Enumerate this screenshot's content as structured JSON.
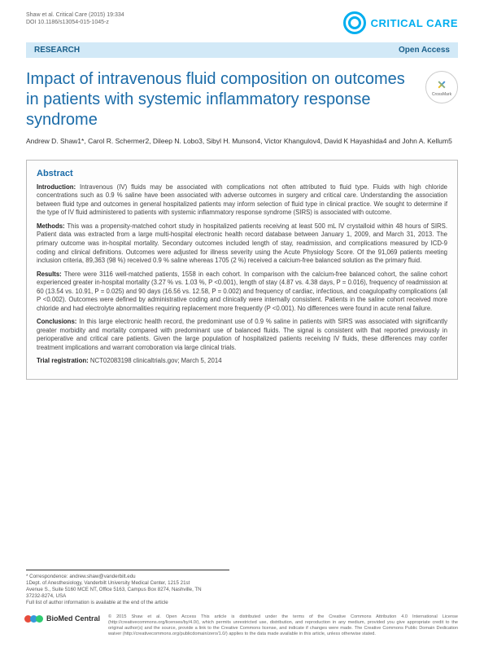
{
  "header": {
    "citation_line1": "Shaw et al. Critical Care (2015) 19:334",
    "citation_line2": "DOI 10.1186/s13054-015-1045-z",
    "journal_name": "CRITICAL CARE"
  },
  "band": {
    "left": "RESEARCH",
    "right": "Open Access"
  },
  "title": "Impact of intravenous fluid composition on outcomes in patients with systemic inflammatory response syndrome",
  "crossmark_label": "CrossMark",
  "authors": "Andrew D. Shaw1*, Carol R. Schermer2, Dileep N. Lobo3, Sibyl H. Munson4, Victor Khangulov4, David K Hayashida4 and John A. Kellum5",
  "abstract": {
    "heading": "Abstract",
    "intro_label": "Introduction:",
    "intro": "Intravenous (IV) fluids may be associated with complications not often attributed to fluid type. Fluids with high chloride concentrations such as 0.9 % saline have been associated with adverse outcomes in surgery and critical care. Understanding the association between fluid type and outcomes in general hospitalized patients may inform selection of fluid type in clinical practice. We sought to determine if the type of IV fluid administered to patients with systemic inflammatory response syndrome (SIRS) is associated with outcome.",
    "methods_label": "Methods:",
    "methods": "This was a propensity-matched cohort study in hospitalized patients receiving at least 500 mL IV crystalloid within 48 hours of SIRS. Patient data was extracted from a large multi-hospital electronic health record database between January 1, 2009, and March 31, 2013. The primary outcome was in-hospital mortality. Secondary outcomes included length of stay, readmission, and complications measured by ICD-9 coding and clinical definitions. Outcomes were adjusted for illness severity using the Acute Physiology Score. Of the 91,069 patients meeting inclusion criteria, 89,363 (98 %) received 0.9 % saline whereas 1705 (2 %) received a calcium-free balanced solution as the primary fluid.",
    "results_label": "Results:",
    "results": "There were 3116 well-matched patients, 1558 in each cohort. In comparison with the calcium-free balanced cohort, the saline cohort experienced greater in-hospital mortality (3.27 % vs. 1.03 %, P <0.001), length of stay (4.87 vs. 4.38 days, P = 0.016), frequency of readmission at 60 (13.54 vs. 10.91, P = 0.025) and 90 days (16.56 vs. 12.58, P = 0.002) and frequency of cardiac, infectious, and coagulopathy complications (all P <0.002). Outcomes were defined by administrative coding and clinically were internally consistent. Patients in the saline cohort received more chloride and had electrolyte abnormalities requiring replacement more frequently (P <0.001). No differences were found in acute renal failure.",
    "conclusions_label": "Conclusions:",
    "conclusions": "In this large electronic health record, the predominant use of 0.9 % saline in patients with SIRS was associated with significantly greater morbidity and mortality compared with predominant use of balanced fluids. The signal is consistent with that reported previously in perioperative and critical care patients. Given the large population of hospitalized patients receiving IV fluids, these differences may confer treatment implications and warrant corroboration via large clinical trials.",
    "trial_label": "Trial registration:",
    "trial": "NCT02083198 clinicaltrials.gov; March 5, 2014"
  },
  "correspondence": {
    "line1": "* Correspondence: andrew.shaw@vanderbilt.edu",
    "line2": "1Dept. of Anesthesiology, Vanderbilt University Medical Center, 1215 21st",
    "line3": "Avenue S., Suite 5160 MCE NT, Office 5163, Campus Box 8274, Nashville, TN",
    "line4": "37232-8274, USA",
    "line5": "Full list of author information is available at the end of the article"
  },
  "publisher": {
    "name": "BioMed Central",
    "circle_colors": [
      "#e74c3c",
      "#3498db",
      "#2ecc71"
    ]
  },
  "license": "© 2015 Shaw et al. Open Access This article is distributed under the terms of the Creative Commons Attribution 4.0 International License (http://creativecommons.org/licenses/by/4.0/), which permits unrestricted use, distribution, and reproduction in any medium, provided you give appropriate credit to the original author(s) and the source, provide a link to the Creative Commons license, and indicate if changes were made. The Creative Commons Public Domain Dedication waiver (http://creativecommons.org/publicdomain/zero/1.0/) applies to the data made available in this article, unless otherwise stated."
}
